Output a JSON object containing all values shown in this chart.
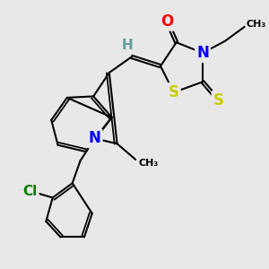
{
  "background_color": "#e8e8e8",
  "bond_color": "#000000",
  "bond_width": 1.5,
  "dbo": 0.055,
  "colors": {
    "O": "#FF0000",
    "N": "#0000FF",
    "S": "#CCCC00",
    "Cl": "#008000",
    "H": "#5f9ea0",
    "C": "#000000"
  }
}
